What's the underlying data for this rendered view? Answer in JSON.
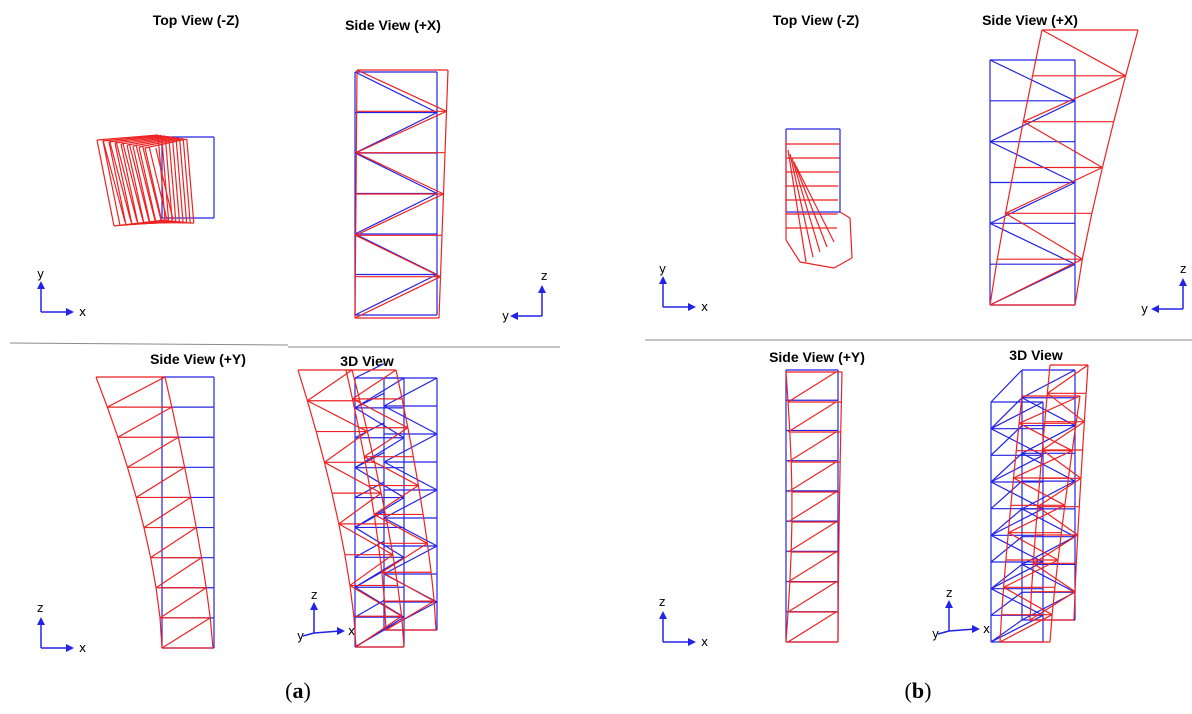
{
  "colors": {
    "undeformed": "#2323e6",
    "deformed": "#ee2222",
    "divider": "#8a8a8a",
    "axis_arrow": "#2323e6"
  },
  "panels": [
    {
      "caption": {
        "open": "(",
        "letter": "a",
        "close": ")"
      },
      "views": {
        "top": {
          "title": "Top View (-Z)",
          "axes": [
            "x",
            "y"
          ]
        },
        "side_x": {
          "title": "Side View (+X)",
          "axes": [
            "y",
            "z"
          ]
        },
        "side_y": {
          "title": "Side View (+Y)",
          "axes": [
            "x",
            "z"
          ]
        },
        "view3d": {
          "title": "3D View",
          "axes": [
            "x",
            "z",
            "y"
          ]
        }
      }
    },
    {
      "caption": {
        "open": "(",
        "letter": "b",
        "close": ")"
      },
      "views": {
        "top": {
          "title": "Top View (-Z)",
          "axes": [
            "x",
            "y"
          ]
        },
        "side_x": {
          "title": "Side View (+X)",
          "axes": [
            "y",
            "z"
          ]
        },
        "side_y": {
          "title": "Side View (+Y)",
          "axes": [
            "x",
            "z"
          ]
        },
        "view3d": {
          "title": "3D View",
          "axes": [
            "x",
            "z",
            "y"
          ]
        }
      }
    }
  ]
}
